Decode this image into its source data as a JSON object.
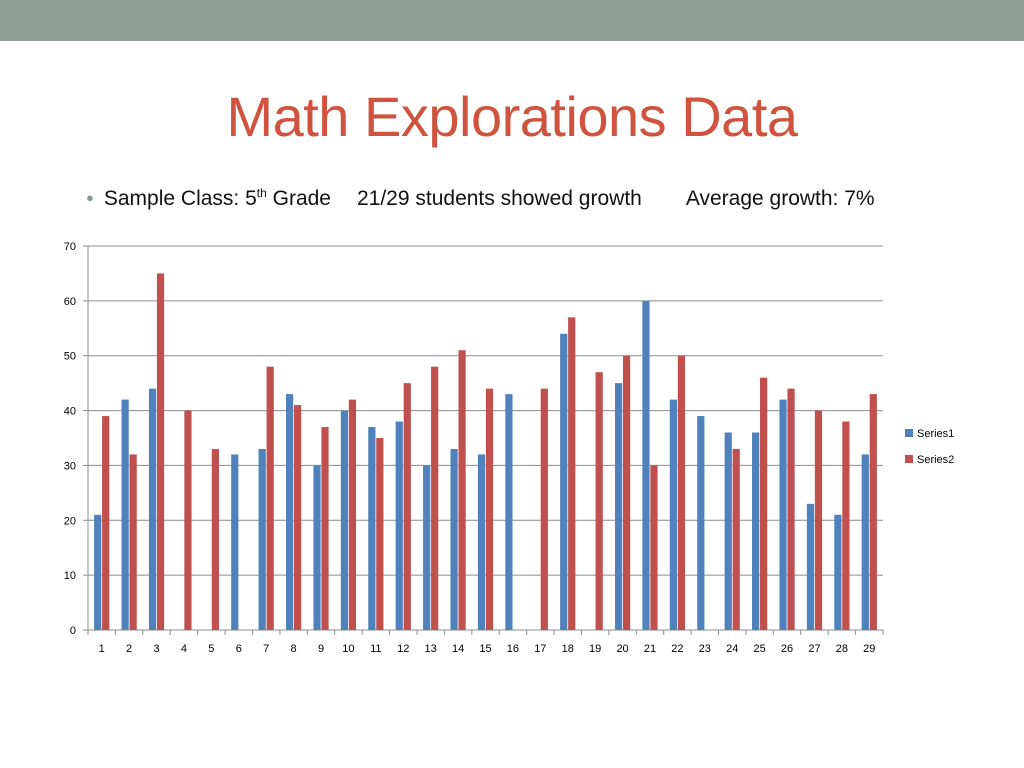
{
  "slide": {
    "title": "Math Explorations Data",
    "subtitle": {
      "class_prefix": "Sample Class: 5",
      "class_sup": "th",
      "class_suffix": " Grade",
      "growth_count": "21/29 students showed growth",
      "average_growth": "Average growth: 7%"
    }
  },
  "colors": {
    "band": "#919e97",
    "title": "#d0533f",
    "series1": "#4f81bd",
    "series2": "#c0504d",
    "grid": "#8c8c8c"
  },
  "chart_data": {
    "type": "bar",
    "categories": [
      "1",
      "2",
      "3",
      "4",
      "5",
      "6",
      "7",
      "8",
      "9",
      "10",
      "11",
      "12",
      "13",
      "14",
      "15",
      "16",
      "17",
      "18",
      "19",
      "20",
      "21",
      "22",
      "23",
      "24",
      "25",
      "26",
      "27",
      "28",
      "29"
    ],
    "series": [
      {
        "name": "Series1",
        "values": [
          21,
          42,
          44,
          0,
          0,
          32,
          33,
          43,
          30,
          40,
          37,
          38,
          30,
          33,
          32,
          43,
          0,
          54,
          0,
          45,
          60,
          42,
          39,
          36,
          36,
          42,
          23,
          21,
          32
        ]
      },
      {
        "name": "Series2",
        "values": [
          39,
          32,
          65,
          40,
          33,
          0,
          48,
          41,
          37,
          42,
          35,
          45,
          48,
          51,
          44,
          0,
          44,
          57,
          47,
          50,
          30,
          50,
          0,
          33,
          46,
          44,
          40,
          38,
          43
        ]
      }
    ],
    "ylim": [
      0,
      70
    ],
    "yticks": [
      0,
      10,
      20,
      30,
      40,
      50,
      60,
      70
    ],
    "grid": true,
    "legend": "right"
  }
}
